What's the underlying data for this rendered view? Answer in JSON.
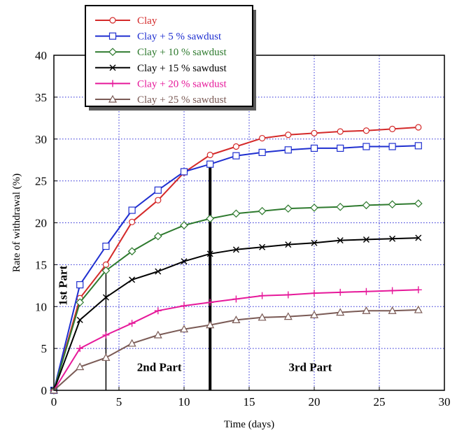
{
  "chart_data": {
    "type": "line",
    "xlabel": "Time (days)",
    "ylabel": "Rate of withdrawal (%)",
    "xlim": [
      0,
      30
    ],
    "ylim": [
      0,
      40
    ],
    "x_ticks": [
      0,
      5,
      10,
      15,
      20,
      25,
      30
    ],
    "y_ticks": [
      0,
      5,
      10,
      15,
      20,
      25,
      30,
      35,
      40
    ],
    "grid": true,
    "legend_position": "top-left",
    "series": [
      {
        "name": "Clay",
        "color": "#d42a2a",
        "marker": "circle",
        "x": [
          0,
          2,
          4,
          6,
          8,
          10,
          12,
          14,
          16,
          18,
          20,
          22,
          24,
          26,
          28
        ],
        "y": [
          0,
          11.0,
          15.0,
          20.1,
          22.7,
          26.0,
          28.1,
          29.1,
          30.1,
          30.5,
          30.7,
          30.9,
          31.0,
          31.2,
          31.4
        ]
      },
      {
        "name": "Clay + 5 % sawdust",
        "color": "#1f2fd0",
        "marker": "square",
        "x": [
          0,
          2,
          4,
          6,
          8,
          10,
          12,
          14,
          16,
          18,
          20,
          22,
          24,
          26,
          28
        ],
        "y": [
          0,
          12.6,
          17.2,
          21.5,
          23.9,
          26.1,
          27.0,
          28.0,
          28.4,
          28.7,
          28.9,
          28.9,
          29.1,
          29.1,
          29.2
        ]
      },
      {
        "name": "Clay + 10 % sawdust",
        "color": "#2e7a2e",
        "marker": "diamond",
        "x": [
          0,
          2,
          4,
          6,
          8,
          10,
          12,
          14,
          16,
          18,
          20,
          22,
          24,
          26,
          28
        ],
        "y": [
          0,
          10.5,
          14.3,
          16.6,
          18.4,
          19.7,
          20.5,
          21.1,
          21.4,
          21.7,
          21.8,
          21.9,
          22.1,
          22.2,
          22.3
        ]
      },
      {
        "name": "Clay + 15 % sawdust",
        "color": "#000000",
        "marker": "x",
        "x": [
          0,
          2,
          4,
          6,
          8,
          10,
          12,
          14,
          16,
          18,
          20,
          22,
          24,
          26,
          28
        ],
        "y": [
          0,
          8.4,
          11.1,
          13.2,
          14.2,
          15.4,
          16.3,
          16.8,
          17.1,
          17.4,
          17.6,
          17.9,
          18.0,
          18.1,
          18.2
        ]
      },
      {
        "name": "Clay + 20 % sawdust",
        "color": "#e6199a",
        "marker": "plus",
        "x": [
          0,
          2,
          4,
          6,
          8,
          10,
          12,
          14,
          16,
          18,
          20,
          22,
          24,
          26,
          28
        ],
        "y": [
          0,
          5.0,
          6.6,
          8.0,
          9.5,
          10.1,
          10.5,
          10.9,
          11.3,
          11.4,
          11.6,
          11.7,
          11.8,
          11.9,
          12.0
        ]
      },
      {
        "name": "Clay + 25 % sawdust",
        "color": "#7a5a55",
        "marker": "triangle",
        "x": [
          0,
          2,
          4,
          6,
          8,
          10,
          12,
          14,
          16,
          18,
          20,
          22,
          24,
          26,
          28
        ],
        "y": [
          0,
          2.8,
          3.9,
          5.6,
          6.6,
          7.3,
          7.8,
          8.4,
          8.7,
          8.8,
          9.0,
          9.3,
          9.5,
          9.5,
          9.6
        ]
      }
    ],
    "dividers": [
      {
        "x": 4,
        "weight": "thin"
      },
      {
        "x": 12,
        "weight": "thick"
      }
    ],
    "annotations": [
      {
        "text": "1st Part",
        "x": 1.0,
        "y": 12.5,
        "rotate": true
      },
      {
        "text": "2nd Part",
        "x": 8.1,
        "y": 2.3
      },
      {
        "text": "3rd Part",
        "x": 19.7,
        "y": 2.3
      }
    ]
  }
}
